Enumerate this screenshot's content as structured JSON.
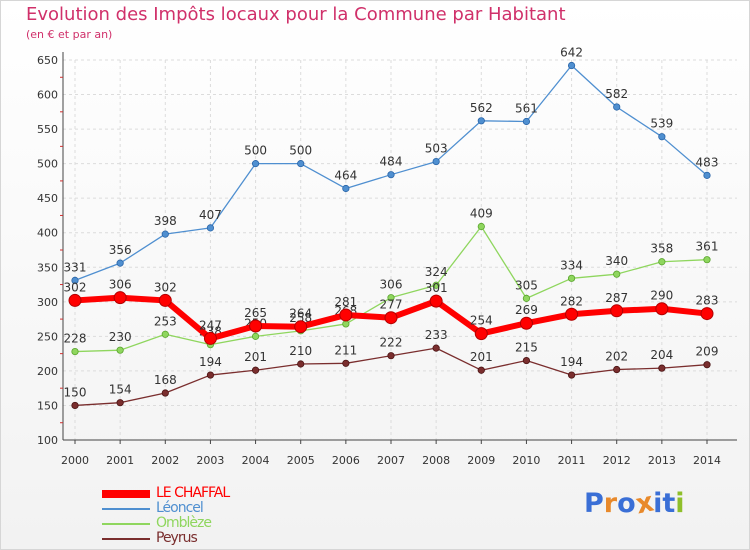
{
  "title": "Evolution des Impôts locaux pour la Commune par Habitant",
  "subtitle": "(en € et par an)",
  "logo": {
    "letters": [
      "P",
      "r",
      "o",
      "x",
      "i",
      "t",
      "i"
    ],
    "colors": [
      "#3a6fd6",
      "#e8892b",
      "#3a6fd6",
      "#e8892b",
      "#3a6fd6",
      "#3a6fd6",
      "#8fbf2a"
    ]
  },
  "chart_data": {
    "type": "line",
    "title": "Evolution des Impôts locaux pour la Commune par Habitant",
    "subtitle": "(en € et par an)",
    "xlabel": "",
    "ylabel": "",
    "ylim": [
      100,
      650
    ],
    "yticks": [
      100,
      150,
      200,
      250,
      300,
      350,
      400,
      450,
      500,
      550,
      600,
      650
    ],
    "x": [
      "2000",
      "2001",
      "2002",
      "2003",
      "2004",
      "2005",
      "2006",
      "2007",
      "2008",
      "2009",
      "2010",
      "2011",
      "2012",
      "2013",
      "2014"
    ],
    "grid": true,
    "legend_position": "bottom-left",
    "series": [
      {
        "name": "LE CHAFFAL",
        "color": "#ff0000",
        "values": [
          302,
          306,
          302,
          247,
          265,
          264,
          281,
          277,
          301,
          254,
          269,
          282,
          287,
          290,
          283
        ]
      },
      {
        "name": "Léoncel",
        "color": "#4f8fd0",
        "values": [
          331,
          356,
          398,
          407,
          500,
          500,
          464,
          484,
          503,
          562,
          561,
          642,
          582,
          539,
          483
        ]
      },
      {
        "name": "Omblèze",
        "color": "#8fd65e",
        "values": [
          228,
          230,
          253,
          238,
          250,
          258,
          268,
          306,
          324,
          409,
          305,
          334,
          340,
          358,
          361
        ]
      },
      {
        "name": "Peyrus",
        "color": "#7a2e2e",
        "values": [
          150,
          154,
          168,
          194,
          201,
          210,
          211,
          222,
          233,
          201,
          215,
          194,
          202,
          204,
          209
        ]
      }
    ]
  }
}
